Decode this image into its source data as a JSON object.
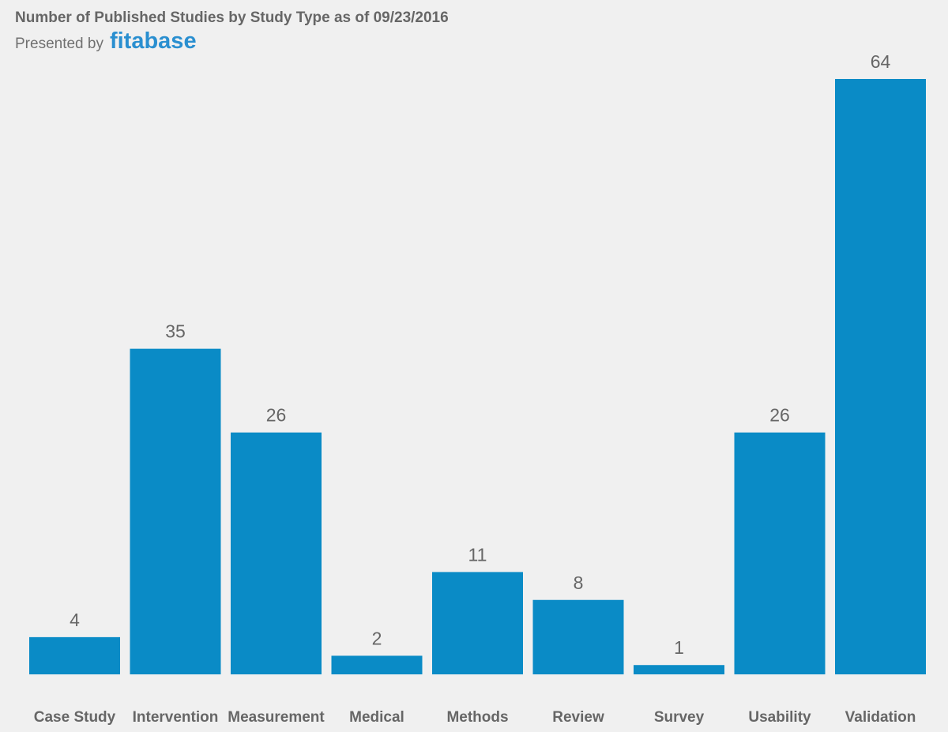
{
  "header": {
    "title": "Number of Published Studies by Study Type as of 09/23/2016",
    "presented_by": "Presented by",
    "brand": "fitabase"
  },
  "colors": {
    "background": "#f0f0f0",
    "bar": "#0a8bc6",
    "text": "#666666",
    "brand": "#2a8fd0"
  },
  "chart_data": {
    "type": "bar",
    "title": "Number of Published Studies by Study Type as of 09/23/2016",
    "categories": [
      "Case Study",
      "Intervention",
      "Measurement",
      "Medical",
      "Methods",
      "Review",
      "Survey",
      "Usability",
      "Validation"
    ],
    "values": [
      4,
      35,
      26,
      2,
      11,
      8,
      1,
      26,
      64
    ],
    "xlabel": "",
    "ylabel": "",
    "ylim": [
      0,
      64
    ],
    "grid": false,
    "data_labels": true,
    "legend": "none"
  }
}
